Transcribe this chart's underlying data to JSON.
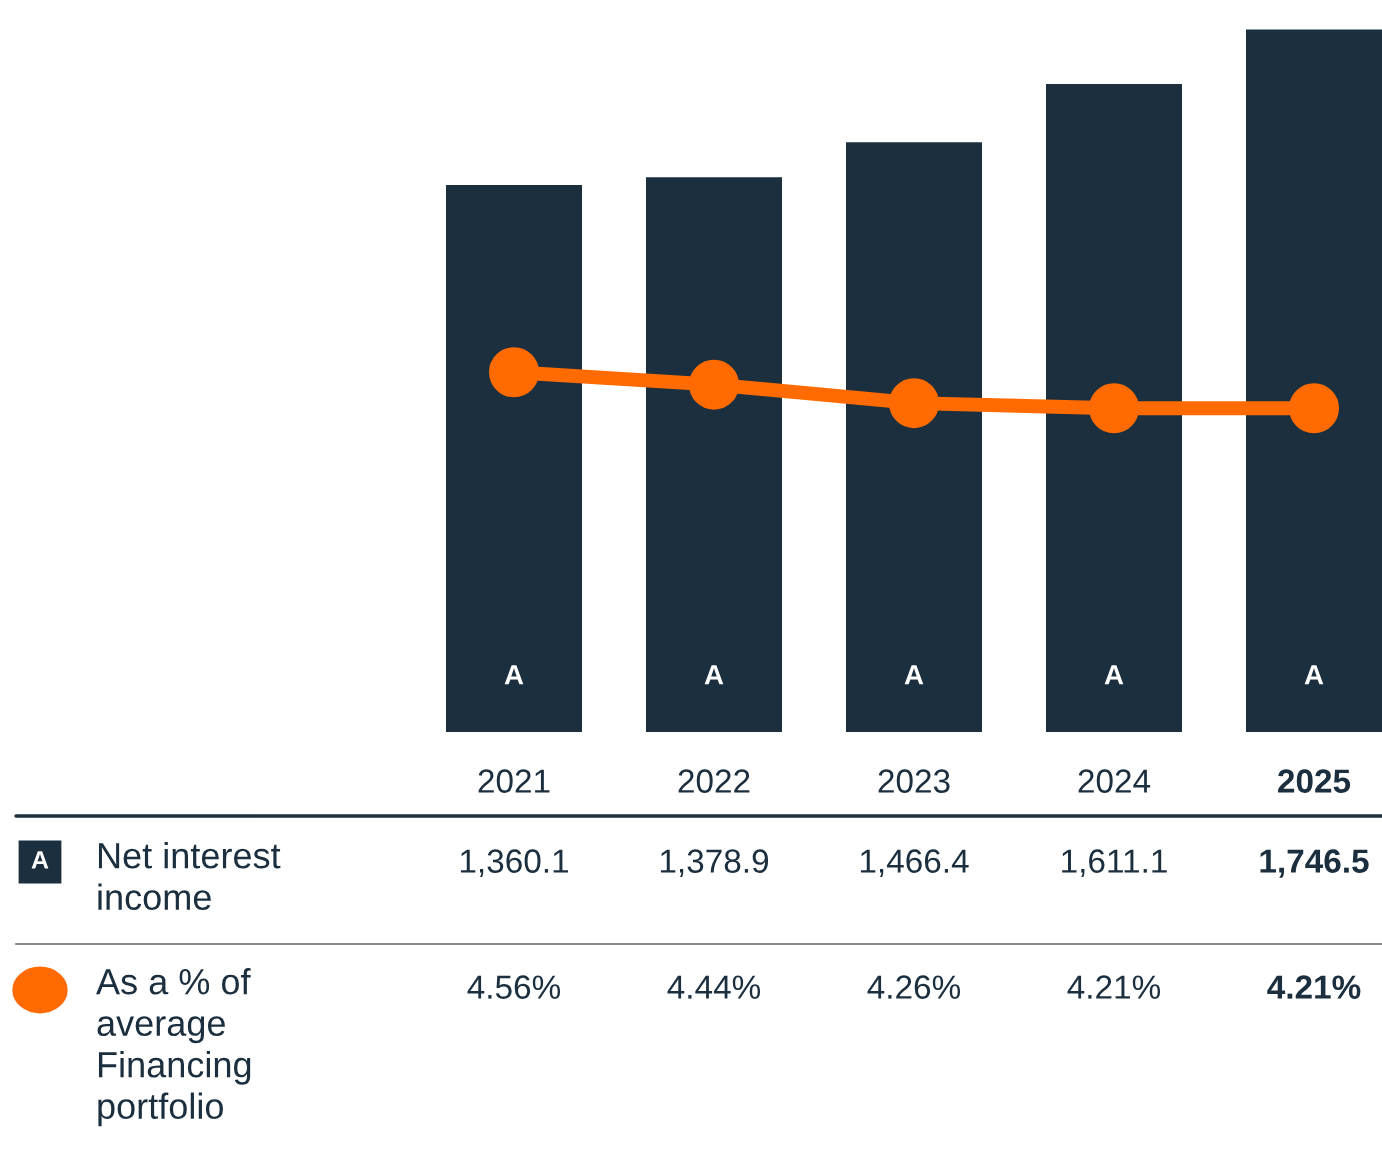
{
  "chart_data": {
    "type": "bar",
    "categories": [
      "2021",
      "2022",
      "2023",
      "2024",
      "2025"
    ],
    "series": [
      {
        "name": "Net interest\nincome",
        "color": "#1b2f3f",
        "values": [
          1360.1,
          1378.9,
          1466.4,
          1611.1,
          1746.5
        ],
        "value_labels": [
          "1,360.1",
          "1,378.9",
          "1,466.4",
          "1,611.1",
          "1,746.5"
        ]
      },
      {
        "name": "As a % of\naverage\nFinancing\nportfolio",
        "type": "line",
        "axis": "y2",
        "color": "#ff6b00",
        "marker": "circle",
        "values": [
          4.56,
          4.44,
          4.26,
          4.21,
          4.21
        ],
        "value_labels": [
          "4.56%",
          "4.44%",
          "4.26%",
          "4.21%",
          "4.21%"
        ]
      }
    ],
    "tick_labels": "x",
    "legend": "bottom left",
    "annotations": [
      "A",
      "A",
      "A",
      "A",
      "A",
      "A"
    ]
  }
}
